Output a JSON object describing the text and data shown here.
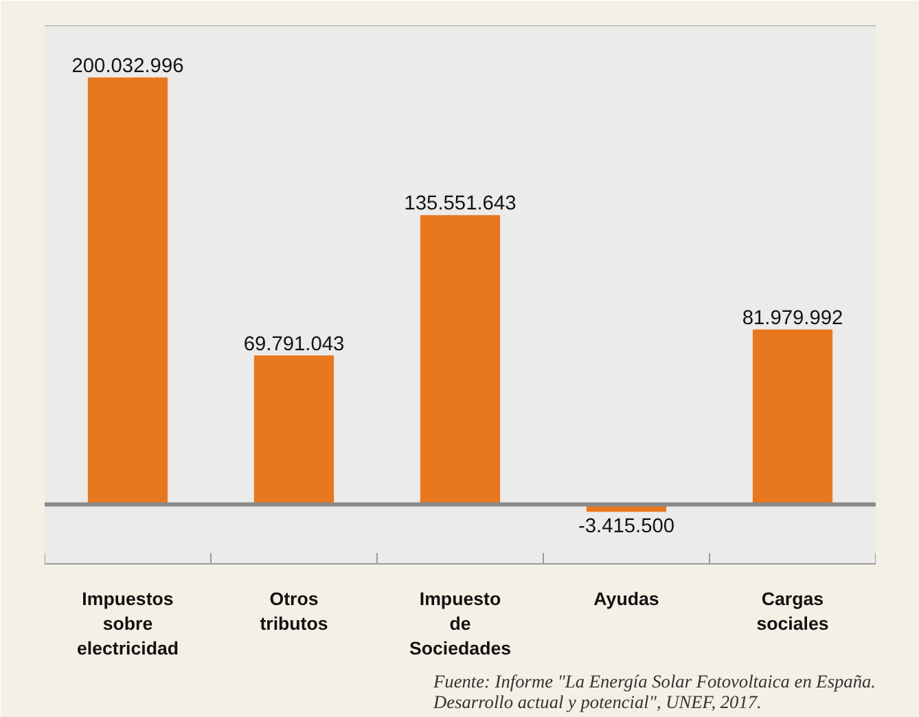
{
  "chart_data": {
    "type": "bar",
    "categories": [
      "Impuestos sobre electricidad",
      "Otros tributos",
      "Impuesto de Sociedades",
      "Ayudas",
      "Cargas sociales"
    ],
    "values": [
      200032996,
      69791043,
      135551643,
      -3415500,
      81979992
    ],
    "value_labels": [
      "200.032.996",
      "69.791.043",
      "135.551.643",
      "-3.415.500",
      "81.979.992"
    ],
    "color": "#e8771e",
    "grid": false,
    "annotations": [
      "Fuente: Informe \"La Energía Solar Fotovoltaica en España. Desarrollo actual y potencial\", UNEF, 2017."
    ]
  }
}
